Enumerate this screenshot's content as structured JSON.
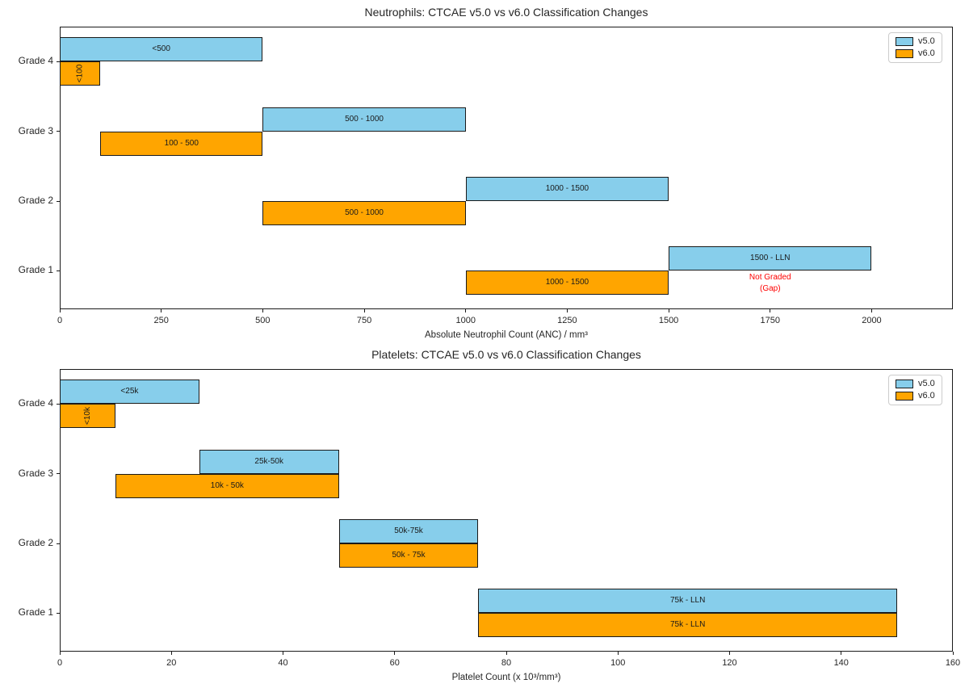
{
  "figure": {
    "background": "#ffffff",
    "colors": {
      "v5": "#87CEEB",
      "v6": "#FFA500",
      "edge": "#1a1a1a",
      "annotation_red": "#ff0000",
      "text": "#262626"
    }
  },
  "legend": {
    "items": [
      {
        "label": "v5.0",
        "color_key": "v5"
      },
      {
        "label": "v6.0",
        "color_key": "v6"
      }
    ]
  },
  "chart_data": [
    {
      "type": "bar",
      "orientation": "horizontal",
      "title": "Neutrophils: CTCAE v5.0 vs v6.0 Classification Changes",
      "xlabel": "Absolute Neutrophil Count (ANC) / mm³",
      "xlim": [
        0,
        2200
      ],
      "xticks": [
        0,
        250,
        500,
        750,
        1000,
        1250,
        1500,
        1750,
        2000
      ],
      "categories": [
        "Grade 4",
        "Grade 3",
        "Grade 2",
        "Grade 1"
      ],
      "legend_position": "upper right",
      "grid": false,
      "series": [
        {
          "name": "v5.0",
          "color_key": "v5",
          "slot": "above",
          "bars": [
            {
              "category": "Grade 4",
              "start": 0,
              "end": 500,
              "label": "<500"
            },
            {
              "category": "Grade 3",
              "start": 500,
              "end": 1000,
              "label": "500 - 1000"
            },
            {
              "category": "Grade 2",
              "start": 1000,
              "end": 1500,
              "label": "1000 - 1500"
            },
            {
              "category": "Grade 1",
              "start": 1500,
              "end": 2000,
              "label": "1500 - LLN"
            }
          ]
        },
        {
          "name": "v6.0",
          "color_key": "v6",
          "slot": "below",
          "bars": [
            {
              "category": "Grade 4",
              "start": 0,
              "end": 100,
              "label": "<100",
              "label_rotated": true
            },
            {
              "category": "Grade 3",
              "start": 100,
              "end": 500,
              "label": "100 - 500"
            },
            {
              "category": "Grade 2",
              "start": 500,
              "end": 1000,
              "label": "500 - 1000"
            },
            {
              "category": "Grade 1",
              "start": 1000,
              "end": 1500,
              "label": "1000 - 1500"
            }
          ]
        }
      ],
      "annotations": [
        {
          "lines": [
            "Not Graded",
            "(Gap)"
          ],
          "x": 1750,
          "category": "Grade 1",
          "slot": "below",
          "color_key": "annotation_red"
        }
      ]
    },
    {
      "type": "bar",
      "orientation": "horizontal",
      "title": "Platelets: CTCAE v5.0 vs v6.0 Classification Changes",
      "xlabel": "Platelet Count (x 10³/mm³)",
      "xlim": [
        0,
        160
      ],
      "xticks": [
        0,
        20,
        40,
        60,
        80,
        100,
        120,
        140,
        160
      ],
      "categories": [
        "Grade 4",
        "Grade 3",
        "Grade 2",
        "Grade 1"
      ],
      "legend_position": "upper right",
      "grid": false,
      "series": [
        {
          "name": "v5.0",
          "color_key": "v5",
          "slot": "above",
          "bars": [
            {
              "category": "Grade 4",
              "start": 0,
              "end": 25,
              "label": "<25k"
            },
            {
              "category": "Grade 3",
              "start": 25,
              "end": 50,
              "label": "25k-50k"
            },
            {
              "category": "Grade 2",
              "start": 50,
              "end": 75,
              "label": "50k-75k"
            },
            {
              "category": "Grade 1",
              "start": 75,
              "end": 150,
              "label": "75k - LLN"
            }
          ]
        },
        {
          "name": "v6.0",
          "color_key": "v6",
          "slot": "below",
          "bars": [
            {
              "category": "Grade 4",
              "start": 0,
              "end": 10,
              "label": "<10k",
              "label_rotated": true
            },
            {
              "category": "Grade 3",
              "start": 10,
              "end": 50,
              "label": "10k - 50k"
            },
            {
              "category": "Grade 2",
              "start": 50,
              "end": 75,
              "label": "50k - 75k"
            },
            {
              "category": "Grade 1",
              "start": 75,
              "end": 150,
              "label": "75k - LLN"
            }
          ]
        }
      ],
      "annotations": []
    }
  ]
}
